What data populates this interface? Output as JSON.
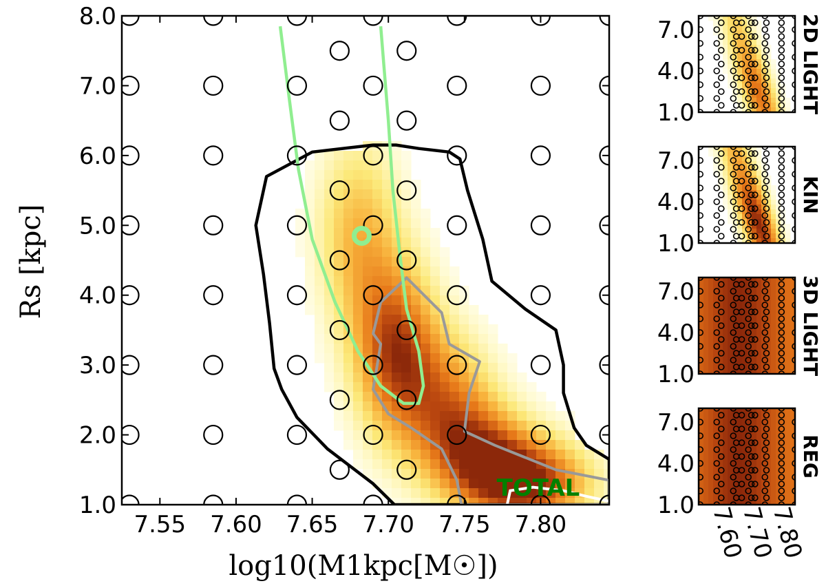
{
  "chart_data": {
    "type": "heatmap",
    "main_panel": {
      "xlabel": "log10(M1kpc[M☉])",
      "ylabel": "Rs [kpc]",
      "xlim": [
        7.525,
        7.845
      ],
      "ylim": [
        1.0,
        8.0
      ],
      "x_ticks": [
        7.55,
        7.6,
        7.65,
        7.7,
        7.75,
        7.8
      ],
      "x_tick_labels": [
        "7.55",
        "7.60",
        "7.65",
        "7.70",
        "7.75",
        "7.80"
      ],
      "y_ticks": [
        1,
        2,
        3,
        4,
        5,
        6,
        7,
        8
      ],
      "y_tick_labels": [
        "1.0",
        "2.0",
        "3.0",
        "4.0",
        "5.0",
        "6.0",
        "7.0",
        "8.0"
      ],
      "label": "TOTAL",
      "grid_points_outer": [
        [
          7.53,
          8
        ],
        [
          7.585,
          8
        ],
        [
          7.64,
          8
        ],
        [
          7.69,
          8
        ],
        [
          7.745,
          8
        ],
        [
          7.8,
          8
        ],
        [
          7.845,
          8
        ],
        [
          7.53,
          7
        ],
        [
          7.585,
          7
        ],
        [
          7.64,
          7
        ],
        [
          7.69,
          7
        ],
        [
          7.745,
          7
        ],
        [
          7.8,
          7
        ],
        [
          7.845,
          7
        ],
        [
          7.53,
          6
        ],
        [
          7.585,
          6
        ],
        [
          7.64,
          6
        ],
        [
          7.745,
          6
        ],
        [
          7.8,
          6
        ],
        [
          7.845,
          6
        ],
        [
          7.53,
          5
        ],
        [
          7.585,
          5
        ],
        [
          7.64,
          5
        ],
        [
          7.745,
          5
        ],
        [
          7.8,
          5
        ],
        [
          7.845,
          5
        ],
        [
          7.53,
          4
        ],
        [
          7.585,
          4
        ],
        [
          7.64,
          4
        ],
        [
          7.745,
          4
        ],
        [
          7.8,
          4
        ],
        [
          7.845,
          4
        ],
        [
          7.53,
          3
        ],
        [
          7.585,
          3
        ],
        [
          7.64,
          3
        ],
        [
          7.745,
          3
        ],
        [
          7.8,
          3
        ],
        [
          7.845,
          3
        ],
        [
          7.53,
          2
        ],
        [
          7.585,
          2
        ],
        [
          7.64,
          2
        ],
        [
          7.745,
          2
        ],
        [
          7.8,
          2
        ],
        [
          7.845,
          2
        ],
        [
          7.53,
          1
        ],
        [
          7.585,
          1
        ],
        [
          7.64,
          1
        ],
        [
          7.69,
          1
        ],
        [
          7.745,
          1
        ],
        [
          7.8,
          1
        ],
        [
          7.845,
          1
        ]
      ],
      "grid_points_inner": [
        [
          7.668,
          7.5
        ],
        [
          7.712,
          7.5
        ],
        [
          7.668,
          6.5
        ],
        [
          7.712,
          6.5
        ],
        [
          7.69,
          6.0
        ],
        [
          7.668,
          5.5
        ],
        [
          7.712,
          5.5
        ],
        [
          7.69,
          5.0
        ],
        [
          7.668,
          4.5
        ],
        [
          7.712,
          4.5
        ],
        [
          7.69,
          4.0
        ],
        [
          7.668,
          3.5
        ],
        [
          7.712,
          3.5
        ],
        [
          7.69,
          3.0
        ],
        [
          7.668,
          2.5
        ],
        [
          7.712,
          2.5
        ],
        [
          7.69,
          2.0
        ],
        [
          7.668,
          1.5
        ],
        [
          7.712,
          1.5
        ]
      ],
      "best_fit_marker": [
        7.6825,
        4.85
      ],
      "heat_blobs": [
        {
          "x": 7.68,
          "y": 4.9,
          "sx": 0.02,
          "sy": 1.0,
          "w": 0.5
        },
        {
          "x": 7.705,
          "y": 3.2,
          "sx": 0.02,
          "sy": 0.9,
          "w": 0.85
        },
        {
          "x": 7.74,
          "y": 2.5,
          "sx": 0.022,
          "sy": 0.7,
          "w": 0.55
        },
        {
          "x": 7.79,
          "y": 1.3,
          "sx": 0.03,
          "sy": 0.45,
          "w": 1.0
        },
        {
          "x": 7.76,
          "y": 1.8,
          "sx": 0.025,
          "sy": 0.5,
          "w": 0.6
        }
      ],
      "black_contour": [
        [
          7.613,
          5.0
        ],
        [
          7.62,
          5.7
        ],
        [
          7.65,
          6.05
        ],
        [
          7.69,
          6.15
        ],
        [
          7.705,
          6.15
        ],
        [
          7.72,
          6.1
        ],
        [
          7.74,
          6.05
        ],
        [
          7.747,
          5.95
        ],
        [
          7.752,
          5.5
        ],
        [
          7.762,
          4.8
        ],
        [
          7.768,
          4.2
        ],
        [
          7.79,
          3.8
        ],
        [
          7.81,
          3.5
        ],
        [
          7.815,
          3.0
        ],
        [
          7.815,
          2.6
        ],
        [
          7.822,
          2.1
        ],
        [
          7.83,
          1.85
        ],
        [
          7.845,
          1.65
        ],
        [
          7.845,
          1.0
        ],
        [
          7.704,
          1.0
        ],
        [
          7.69,
          1.3
        ],
        [
          7.66,
          1.8
        ],
        [
          7.64,
          2.25
        ],
        [
          7.63,
          2.65
        ],
        [
          7.625,
          2.95
        ],
        [
          7.622,
          3.6
        ],
        [
          7.618,
          4.3
        ],
        [
          7.613,
          5.0
        ]
      ],
      "gray_contour": [
        [
          7.712,
          4.25
        ],
        [
          7.735,
          3.75
        ],
        [
          7.74,
          3.3
        ],
        [
          7.76,
          3.05
        ],
        [
          7.753,
          2.6
        ],
        [
          7.75,
          2.05
        ],
        [
          7.77,
          1.85
        ],
        [
          7.81,
          1.5
        ],
        [
          7.845,
          1.35
        ],
        [
          7.845,
          1.0
        ],
        [
          7.748,
          1.0
        ],
        [
          7.745,
          1.35
        ],
        [
          7.735,
          1.8
        ],
        [
          7.715,
          2.1
        ],
        [
          7.7,
          2.3
        ],
        [
          7.69,
          2.65
        ],
        [
          7.695,
          3.3
        ],
        [
          7.69,
          3.45
        ],
        [
          7.695,
          3.9
        ],
        [
          7.712,
          4.25
        ]
      ],
      "white_contour": [
        [
          7.778,
          1.0
        ],
        [
          7.78,
          1.2
        ],
        [
          7.795,
          1.25
        ],
        [
          7.815,
          1.2
        ],
        [
          7.83,
          1.12
        ],
        [
          7.845,
          1.05
        ]
      ],
      "green_curve": [
        [
          7.629,
          7.85
        ],
        [
          7.635,
          6.8
        ],
        [
          7.641,
          5.8
        ],
        [
          7.65,
          4.8
        ],
        [
          7.665,
          3.9
        ],
        [
          7.68,
          3.2
        ],
        [
          7.695,
          2.7
        ],
        [
          7.71,
          2.45
        ],
        [
          7.72,
          2.45
        ],
        [
          7.723,
          2.7
        ],
        [
          7.72,
          3.2
        ],
        [
          7.712,
          3.8
        ],
        [
          7.708,
          4.5
        ],
        [
          7.703,
          5.5
        ],
        [
          7.7,
          6.5
        ],
        [
          7.697,
          7.3
        ],
        [
          7.695,
          7.85
        ]
      ]
    },
    "side_panels": [
      {
        "label": "2D LIGHT",
        "y_tick_labels": [
          "1.0",
          "4.0",
          "7.0"
        ],
        "level": 0.35
      },
      {
        "label": "KIN",
        "y_tick_labels": [
          "1.0",
          "4.0",
          "7.0"
        ],
        "level": 0.45
      },
      {
        "label": "3D LIGHT",
        "y_tick_labels": [
          "1.0",
          "4.0",
          "7.0"
        ],
        "level": 0.95
      },
      {
        "label": "REG",
        "y_tick_labels": [
          "1.0",
          "4.0",
          "7.0"
        ],
        "level": 0.9
      }
    ],
    "side_x_tick_labels": [
      "7.60",
      "7.70",
      "7.80"
    ]
  },
  "colors": {
    "contour_outer": "#000000",
    "contour_inner": "#999999",
    "contour_core": "#ffffff",
    "green_line": "#90ee90",
    "total_label": "#008000",
    "grid_marker": "#000000"
  }
}
